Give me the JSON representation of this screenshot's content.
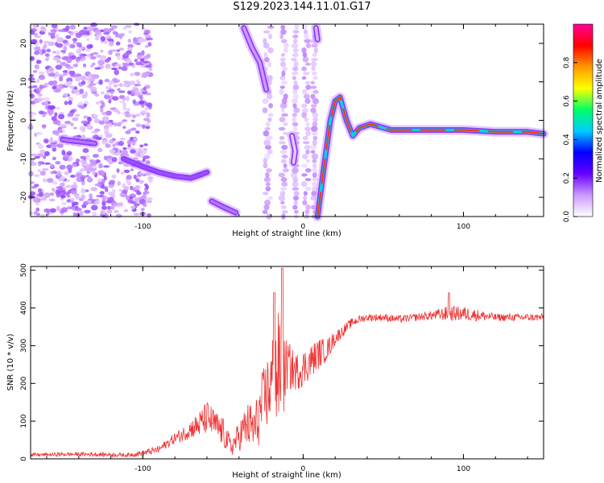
{
  "figure": {
    "title": "S129.2023.144.11.01.G17"
  },
  "chart_data": [
    {
      "type": "heatmap",
      "xlabel": "Height of straight line (km)",
      "ylabel": "Frequency (Hz)",
      "xlim": [
        -170,
        150
      ],
      "ylim": [
        -25,
        25
      ],
      "x_ticks": [
        -100,
        0,
        100
      ],
      "y_ticks": [
        -20,
        -10,
        0,
        10,
        20
      ],
      "colorbar": {
        "label": "Normalized spectral amplitude",
        "range": [
          0,
          1
        ],
        "ticks": [
          "0.0",
          "0.2",
          "0.4",
          "0.6",
          "0.8"
        ],
        "colormap": [
          "#ffffff",
          "#cc99ff",
          "#6600ff",
          "#0000ff",
          "#00ccff",
          "#00ff66",
          "#ffff00",
          "#ff9900",
          "#ff0000",
          "#ff0099"
        ]
      },
      "ridges": [
        {
          "points": [
            [
              -150,
              -5
            ],
            [
              -140,
              -5.5
            ],
            [
              -130,
              -6
            ]
          ],
          "amplitude": 0.25
        },
        {
          "points": [
            [
              -112,
              -10
            ],
            [
              -100,
              -12
            ],
            [
              -90,
              -13.5
            ],
            [
              -80,
              -14.5
            ],
            [
              -70,
              -15
            ],
            [
              -60,
              -13.5
            ]
          ],
          "amplitude": 0.3
        },
        {
          "points": [
            [
              -57,
              -21
            ],
            [
              -50,
              -22.5
            ],
            [
              -42,
              -24
            ]
          ],
          "amplitude": 0.25
        },
        {
          "points": [
            [
              -37,
              24
            ],
            [
              -32,
              19
            ],
            [
              -27,
              15
            ],
            [
              -23,
              8
            ]
          ],
          "amplitude": 0.2
        },
        {
          "points": [
            [
              -7,
              -4
            ],
            [
              -6,
              -6
            ],
            [
              -5,
              -8
            ],
            [
              -6,
              -11
            ]
          ],
          "amplitude": 0.1
        },
        {
          "points": [
            [
              8,
              24
            ],
            [
              9,
              21
            ]
          ],
          "amplitude": 0.15
        },
        {
          "points": [
            [
              9,
              -25
            ],
            [
              13,
              -12
            ],
            [
              17,
              0
            ],
            [
              20,
              5
            ],
            [
              23,
              6
            ],
            [
              27,
              0
            ],
            [
              31,
              -4
            ],
            [
              35,
              -2
            ],
            [
              42,
              -1
            ],
            [
              55,
              -2.5
            ],
            [
              80,
              -2.5
            ],
            [
              100,
              -2.5
            ],
            [
              120,
              -3
            ],
            [
              140,
              -3
            ],
            [
              150,
              -3.5
            ]
          ],
          "amplitude": 0.85
        }
      ]
    },
    {
      "type": "line",
      "xlabel": "Height of straight line (km)",
      "ylabel": "SNR (10 * v/v)",
      "xlim": [
        -170,
        150
      ],
      "ylim": [
        0,
        510
      ],
      "x_ticks": [
        -100,
        0,
        100
      ],
      "y_ticks": [
        0,
        100,
        200,
        300,
        400,
        500
      ],
      "color": "#ee3333",
      "series": [
        {
          "x": [
            -170,
            -150,
            -130,
            -110,
            -100,
            -90,
            -85,
            -80,
            -75,
            -70,
            -65,
            -60,
            -55,
            -50,
            -45,
            -40,
            -35,
            -30,
            -25,
            -20,
            -17,
            -15,
            -13,
            -10,
            -5,
            0,
            5,
            10,
            15,
            20,
            25,
            30,
            35,
            40,
            50,
            60,
            70,
            80,
            90,
            100,
            110,
            120,
            130,
            140,
            150
          ],
          "y": [
            10,
            12,
            12,
            10,
            15,
            25,
            40,
            55,
            65,
            80,
            90,
            110,
            90,
            70,
            30,
            60,
            90,
            80,
            150,
            200,
            210,
            240,
            200,
            250,
            230,
            240,
            260,
            280,
            290,
            320,
            340,
            360,
            370,
            375,
            375,
            370,
            375,
            380,
            385,
            385,
            380,
            375,
            375,
            375,
            375
          ],
          "noise": [
            5,
            5,
            6,
            5,
            8,
            10,
            12,
            15,
            20,
            25,
            35,
            45,
            40,
            40,
            25,
            40,
            60,
            70,
            90,
            110,
            180,
            150,
            120,
            70,
            50,
            50,
            45,
            40,
            30,
            20,
            15,
            12,
            10,
            10,
            10,
            10,
            10,
            12,
            20,
            20,
            15,
            10,
            10,
            10,
            10
          ]
        }
      ]
    }
  ]
}
